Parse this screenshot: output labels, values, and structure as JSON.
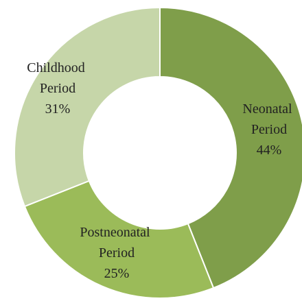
{
  "chart_data": {
    "type": "donut",
    "categories": [
      "Neonatal Period",
      "Postneonatal Period",
      "Childhood Period"
    ],
    "values": [
      44,
      25,
      31
    ],
    "value_labels": [
      "44%",
      "25%",
      "31%"
    ],
    "colors": [
      "#7f9e4a",
      "#9bbb59",
      "#c6d6a9"
    ]
  }
}
